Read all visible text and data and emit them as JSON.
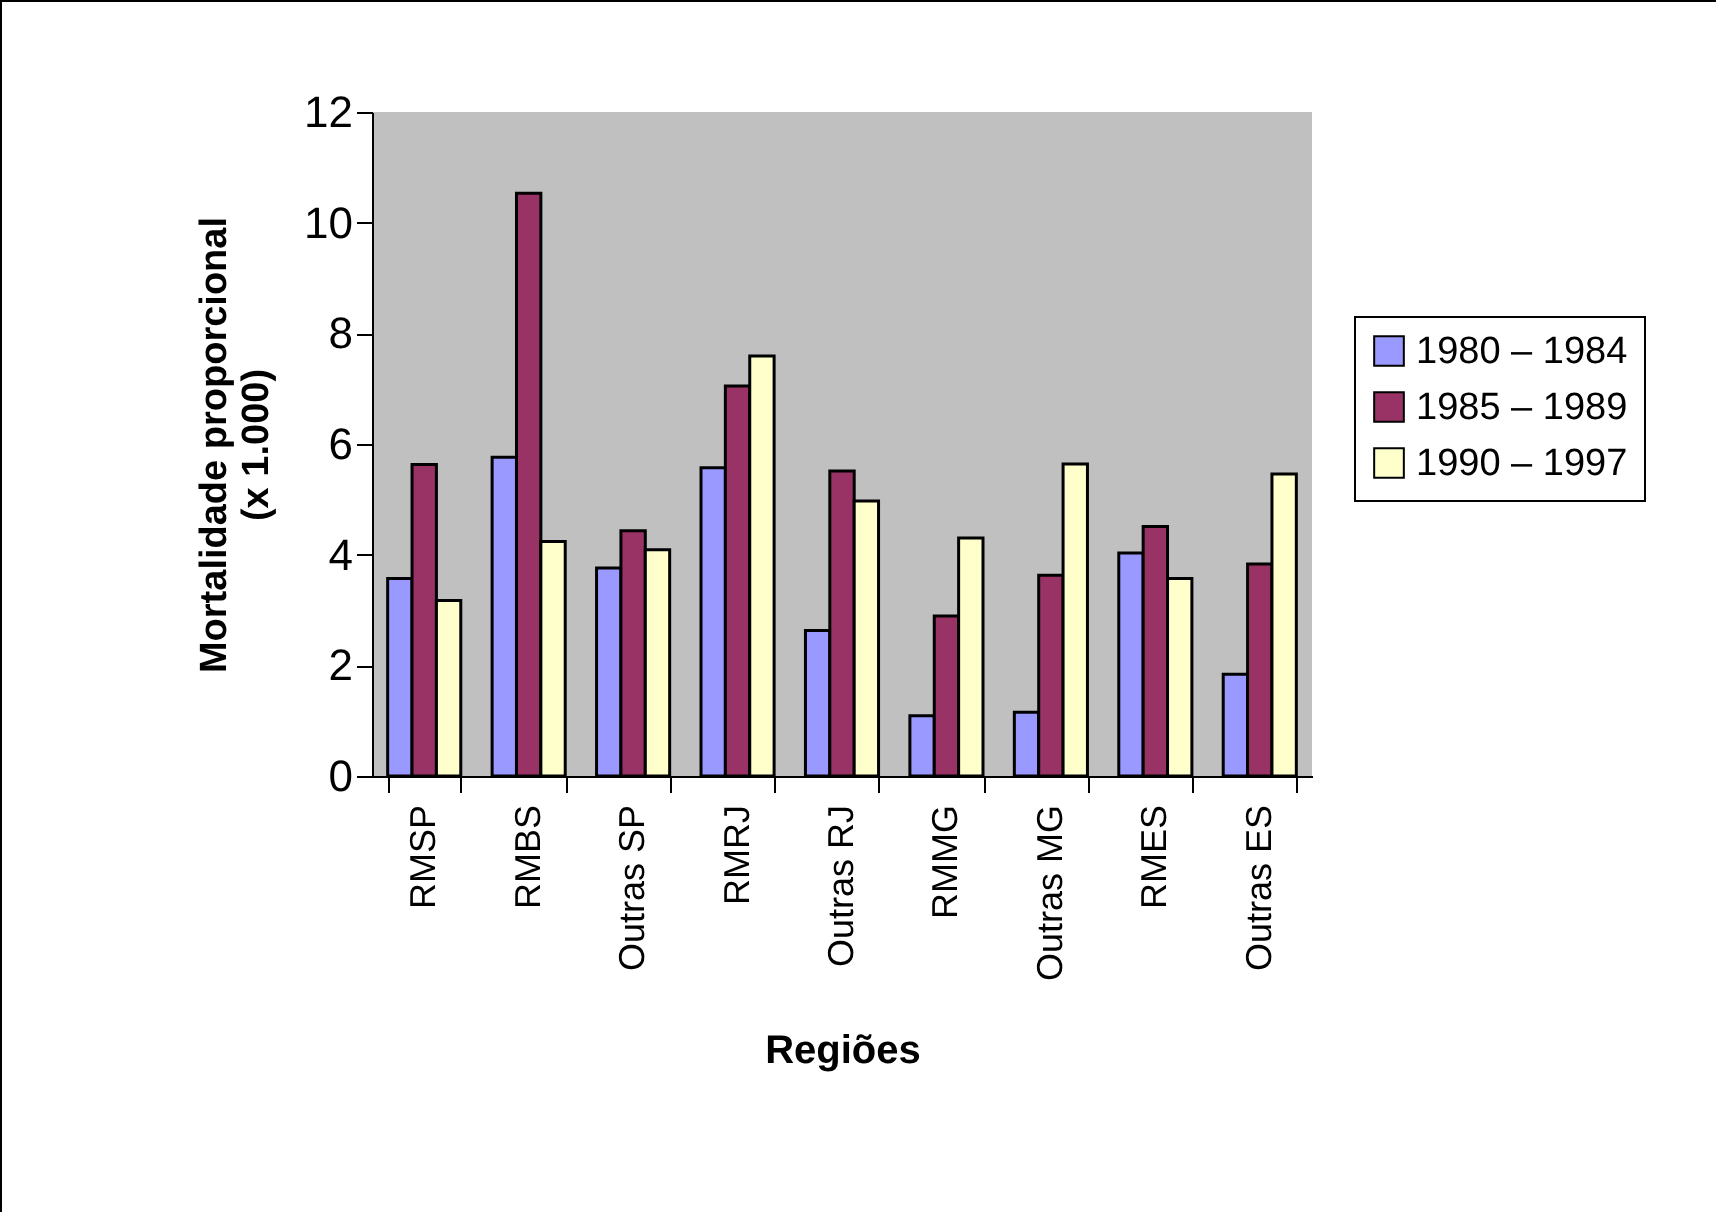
{
  "chart_data": {
    "type": "bar",
    "xlabel": "Regiões",
    "ylabel": "Mortalidade proporcional\n(x 1.000)",
    "categories": [
      "RMSP",
      "RMBS",
      "Outras SP",
      "RMRJ",
      "Outras RJ",
      "RMMG",
      "Outras MG",
      "RMES",
      "Outras ES"
    ],
    "series": [
      {
        "name": "1980 – 1984",
        "color": "#9999ff",
        "values": [
          3.57,
          5.76,
          3.76,
          5.57,
          2.63,
          1.09,
          1.15,
          4.03,
          1.84
        ]
      },
      {
        "name": "1985 – 1989",
        "color": "#993366",
        "values": [
          5.63,
          10.53,
          4.43,
          7.05,
          5.51,
          2.89,
          3.63,
          4.51,
          3.83
        ]
      },
      {
        "name": "1990 – 1997",
        "color": "#ffffcc",
        "values": [
          3.17,
          4.24,
          4.09,
          7.59,
          4.97,
          4.3,
          5.64,
          3.57,
          5.46
        ]
      }
    ],
    "ylim": [
      0,
      12
    ],
    "yticks": [
      0,
      2,
      4,
      6,
      8,
      10,
      12
    ],
    "grid": false,
    "legend": "right"
  }
}
